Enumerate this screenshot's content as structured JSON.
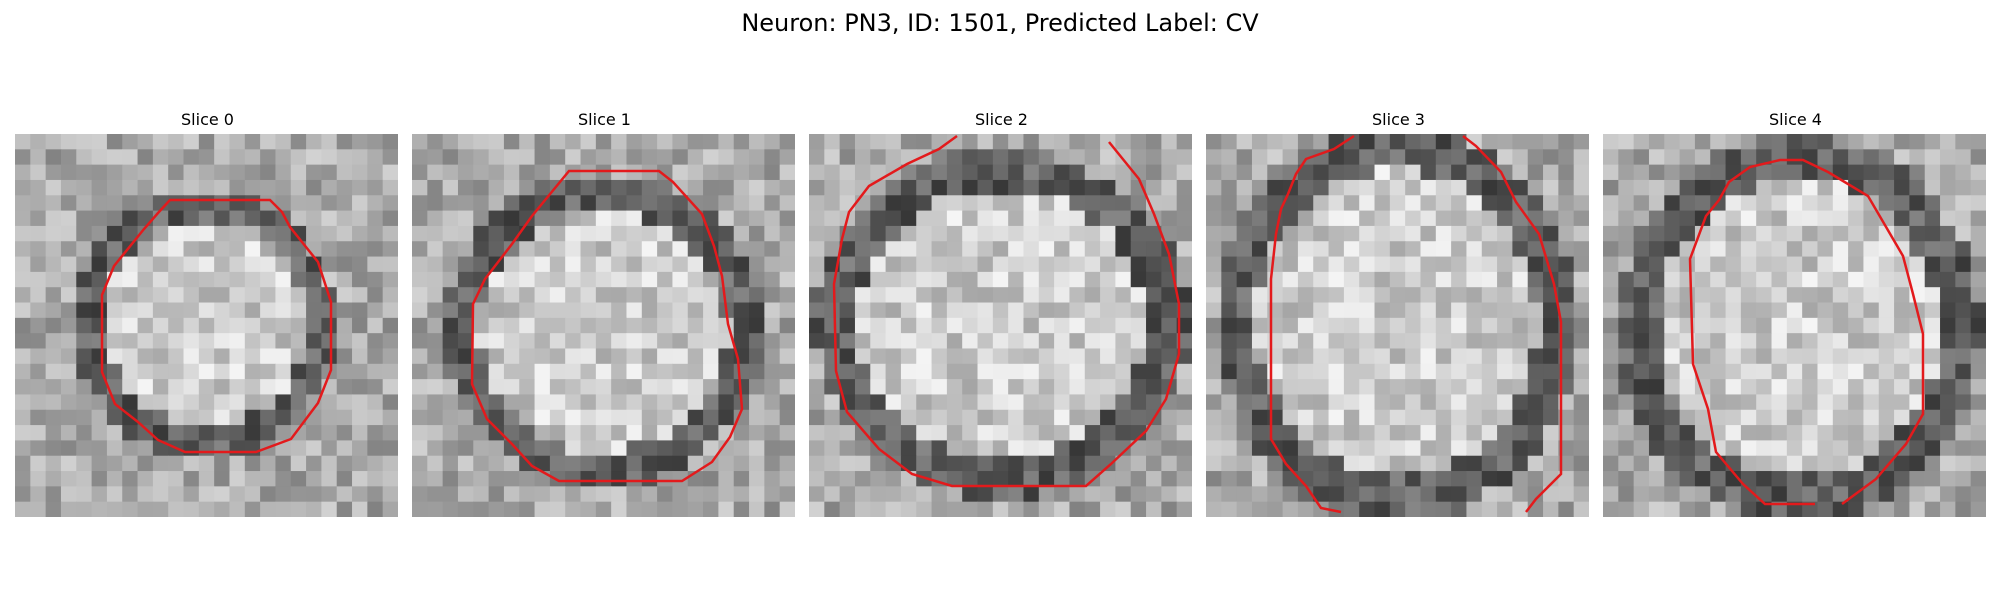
{
  "figure": {
    "title": "Neuron: PN3, ID: 1501, Predicted Label: CV",
    "contour_color": "#e31a1c",
    "colormap": "grayscale",
    "axes_visible": false
  },
  "slices": [
    {
      "title": "Slice 0",
      "contour_shape": "rounded-octagon-cell-contour"
    },
    {
      "title": "Slice 1",
      "contour_shape": "rounded-octagon-cell-contour"
    },
    {
      "title": "Slice 2",
      "contour_shape": "large-octagon-cell-contour"
    },
    {
      "title": "Slice 3",
      "contour_shape": "tall-open-cell-contour"
    },
    {
      "title": "Slice 4",
      "contour_shape": "octagon-with-bottom-gap"
    }
  ]
}
